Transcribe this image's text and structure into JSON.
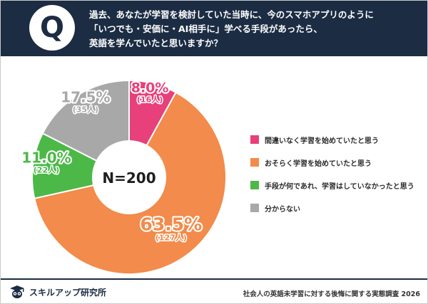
{
  "header": {
    "q_label": "Q",
    "question_lines": [
      "過去、あなたが学習を検討していた当時に、今のスマホアプリのように",
      "「いつでも・安価に・AI相手に」学べる手段があったら、",
      "英語を学んでいたと思いますか？"
    ]
  },
  "chart_data": {
    "type": "pie",
    "center_label": "N=200",
    "categories": [
      "間違いなく学習を始めていたと思う",
      "おそらく学習を始めていたと思う",
      "手段が何であれ、学習はしていなかったと思う",
      "分からない"
    ],
    "values": [
      8.0,
      63.5,
      11.0,
      17.5
    ],
    "percent_labels": [
      "8.0%",
      "63.5%",
      "11.0%",
      "17.5%"
    ],
    "count_labels": [
      "(16人)",
      "(127人)",
      "(22人)",
      "(35人)"
    ],
    "colors": [
      "#e8407a",
      "#f28b4b",
      "#4cb848",
      "#a8a8a8"
    ],
    "legend_position": "right"
  },
  "footer": {
    "brand": "スキルアップ研究所",
    "source": "社会人の英語未学習に対する後悔に関する実態調査 2026"
  },
  "icons": {
    "brand_logo": "owl-logo-icon"
  }
}
